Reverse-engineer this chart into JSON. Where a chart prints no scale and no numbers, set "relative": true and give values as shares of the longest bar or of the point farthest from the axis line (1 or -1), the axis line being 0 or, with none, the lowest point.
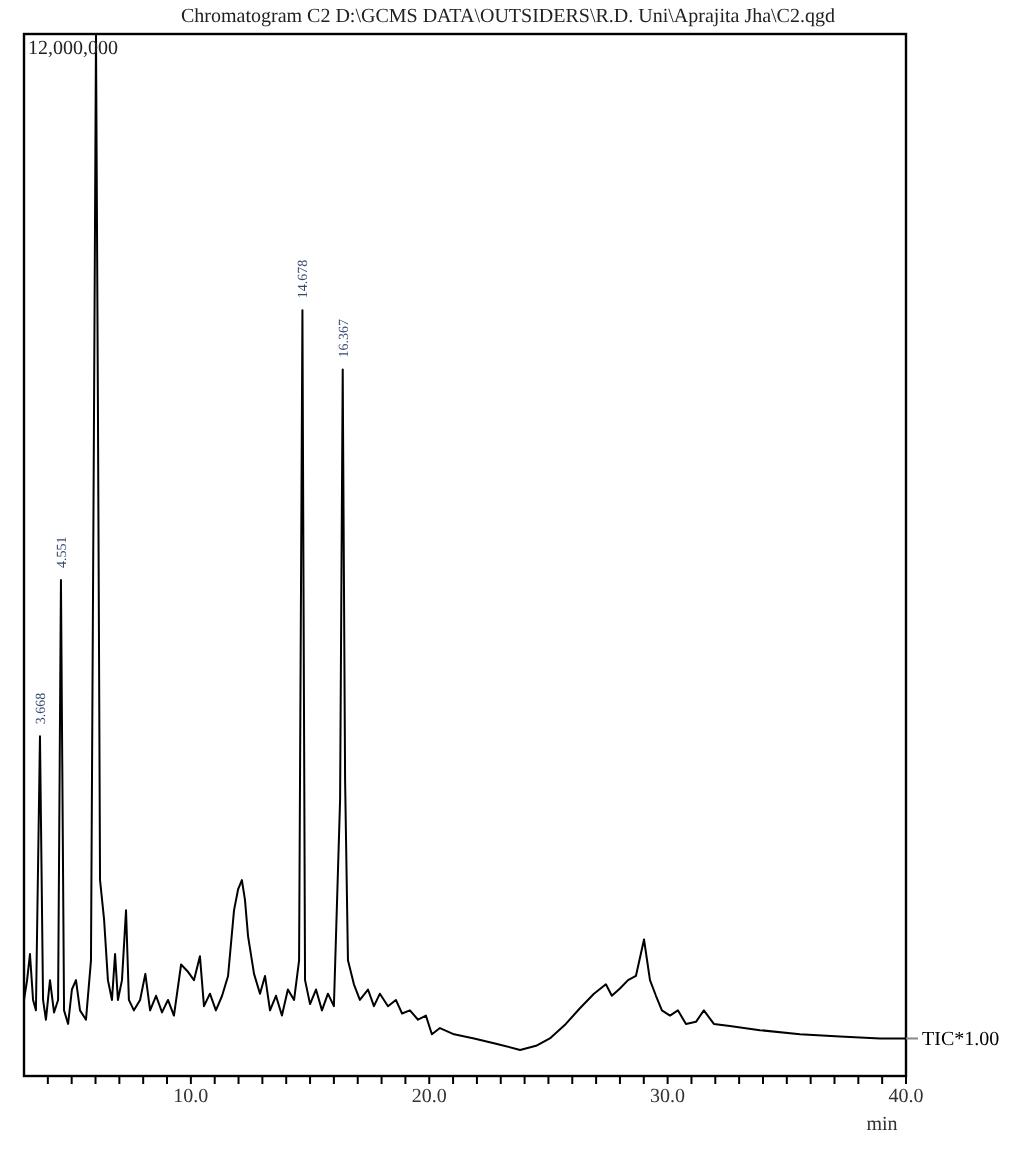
{
  "chart_data": {
    "type": "line",
    "title": "Chromatogram C2 D:\\GCMS DATA\\OUTSIDERS\\R.D. Uni\\Aprajita Jha\\C2.qgd",
    "xlabel": "min",
    "relative": true,
    "x": [
      3.0,
      3.13,
      3.25,
      3.38,
      3.5,
      3.67,
      3.8,
      3.92,
      4.09,
      4.26,
      4.43,
      4.55,
      4.68,
      4.85,
      5.01,
      5.18,
      5.35,
      5.6,
      5.81,
      5.94,
      6.02,
      6.1,
      6.19,
      6.36,
      6.52,
      6.69,
      6.82,
      6.94,
      7.11,
      7.28,
      7.4,
      7.61,
      7.87,
      8.09,
      8.29,
      8.54,
      8.79,
      9.04,
      9.29,
      9.59,
      9.88,
      10.13,
      10.38,
      10.55,
      10.8,
      11.05,
      11.31,
      11.56,
      11.81,
      11.98,
      12.14,
      12.27,
      12.4,
      12.65,
      12.9,
      13.11,
      13.32,
      13.57,
      13.82,
      14.07,
      14.33,
      14.54,
      14.68,
      14.79,
      15.0,
      15.25,
      15.5,
      15.75,
      16.0,
      16.26,
      16.37,
      16.47,
      16.59,
      16.84,
      17.09,
      17.43,
      17.68,
      17.93,
      18.27,
      18.6,
      18.86,
      19.19,
      19.53,
      19.86,
      20.11,
      20.45,
      21.04,
      21.88,
      22.8,
      23.81,
      24.48,
      25.06,
      25.73,
      26.32,
      26.91,
      27.41,
      27.66,
      28.0,
      28.34,
      28.67,
      29.01,
      29.26,
      29.51,
      29.76,
      30.1,
      30.43,
      30.77,
      31.19,
      31.52,
      31.94,
      32.61,
      33.87,
      35.55,
      37.23,
      38.91,
      40.0
    ],
    "series": [
      {
        "name": "TIC*1.00",
        "color": "#000000",
        "values": [
          0.073,
          0.092,
          0.117,
          0.073,
          0.063,
          0.326,
          0.073,
          0.054,
          0.092,
          0.061,
          0.073,
          0.476,
          0.063,
          0.05,
          0.083,
          0.092,
          0.063,
          0.054,
          0.111,
          0.649,
          1.0,
          0.649,
          0.188,
          0.15,
          0.092,
          0.073,
          0.117,
          0.073,
          0.092,
          0.159,
          0.073,
          0.063,
          0.073,
          0.098,
          0.063,
          0.077,
          0.061,
          0.073,
          0.058,
          0.107,
          0.1,
          0.092,
          0.115,
          0.067,
          0.079,
          0.063,
          0.077,
          0.096,
          0.159,
          0.179,
          0.188,
          0.169,
          0.134,
          0.098,
          0.079,
          0.096,
          0.063,
          0.077,
          0.058,
          0.083,
          0.073,
          0.111,
          0.735,
          0.092,
          0.069,
          0.083,
          0.063,
          0.079,
          0.067,
          0.265,
          0.678,
          0.284,
          0.111,
          0.088,
          0.073,
          0.083,
          0.067,
          0.079,
          0.067,
          0.073,
          0.06,
          0.063,
          0.054,
          0.058,
          0.04,
          0.046,
          0.04,
          0.036,
          0.031,
          0.025,
          0.029,
          0.036,
          0.05,
          0.065,
          0.079,
          0.088,
          0.077,
          0.084,
          0.092,
          0.096,
          0.131,
          0.092,
          0.077,
          0.063,
          0.058,
          0.063,
          0.05,
          0.052,
          0.063,
          0.05,
          0.048,
          0.044,
          0.04,
          0.038,
          0.036,
          0.036
        ]
      }
    ],
    "xlim": [
      3,
      40
    ],
    "xticks": [
      {
        "value": 4,
        "label": null
      },
      {
        "value": 5,
        "label": null
      },
      {
        "value": 6,
        "label": null
      },
      {
        "value": 7,
        "label": null
      },
      {
        "value": 8,
        "label": null
      },
      {
        "value": 9,
        "label": null
      },
      {
        "value": 10,
        "label": "10.0"
      },
      {
        "value": 11,
        "label": null
      },
      {
        "value": 12,
        "label": null
      },
      {
        "value": 13,
        "label": null
      },
      {
        "value": 14,
        "label": null
      },
      {
        "value": 15,
        "label": null
      },
      {
        "value": 16,
        "label": null
      },
      {
        "value": 17,
        "label": null
      },
      {
        "value": 18,
        "label": null
      },
      {
        "value": 19,
        "label": null
      },
      {
        "value": 20,
        "label": "20.0"
      },
      {
        "value": 21,
        "label": null
      },
      {
        "value": 22,
        "label": null
      },
      {
        "value": 23,
        "label": null
      },
      {
        "value": 24,
        "label": null
      },
      {
        "value": 25,
        "label": null
      },
      {
        "value": 26,
        "label": null
      },
      {
        "value": 27,
        "label": null
      },
      {
        "value": 28,
        "label": null
      },
      {
        "value": 29,
        "label": null
      },
      {
        "value": 30,
        "label": "30.0"
      },
      {
        "value": 31,
        "label": null
      },
      {
        "value": 32,
        "label": null
      },
      {
        "value": 33,
        "label": null
      },
      {
        "value": 34,
        "label": null
      },
      {
        "value": 35,
        "label": null
      },
      {
        "value": 36,
        "label": null
      },
      {
        "value": 37,
        "label": null
      },
      {
        "value": 38,
        "label": null
      },
      {
        "value": 39,
        "label": null
      },
      {
        "value": 40,
        "label": "40.0"
      }
    ],
    "annotations": [
      "12,000,000",
      {
        "text": "3.668",
        "x": 3.67,
        "y": 0.326
      },
      {
        "text": "4.551",
        "x": 4.55,
        "y": 0.476
      },
      {
        "text": "14.678",
        "x": 14.68,
        "y": 0.735
      },
      {
        "text": "16.367",
        "x": 16.37,
        "y": 0.678
      }
    ]
  }
}
